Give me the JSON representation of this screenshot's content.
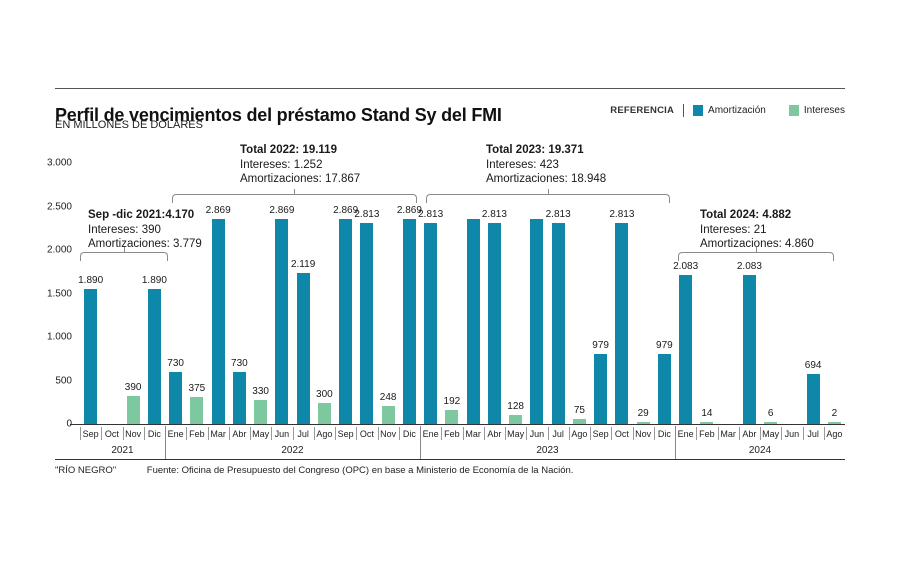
{
  "header": {
    "title": "Perfil de vencimientos del préstamo Stand Sy del FMI",
    "subtitle": "EN MILLONES DE DÓLARES"
  },
  "legend": {
    "label": "REFERENCIA",
    "items": [
      {
        "key": "amortizacion",
        "name": "Amortización",
        "color": "#0e87a8"
      },
      {
        "key": "intereses",
        "name": "Intereses",
        "color": "#7dc89e"
      }
    ]
  },
  "chart_data": {
    "type": "bar",
    "title": "Perfil de vencimientos del préstamo Stand Sy del FMI",
    "unit": "millones de dólares",
    "ylim": [
      0,
      3000
    ],
    "grid": false,
    "legend_position": "top-right",
    "yticks": [
      {
        "value": 3000,
        "label": "3.000"
      },
      {
        "value": 2500,
        "label": "2.500"
      },
      {
        "value": 2000,
        "label": "2.000"
      },
      {
        "value": 1500,
        "label": "1.500"
      },
      {
        "value": 1000,
        "label": "1.000"
      },
      {
        "value": 500,
        "label": "500"
      },
      {
        "value": 0,
        "label": "0"
      }
    ],
    "series_names": [
      "Amortización",
      "Intereses"
    ],
    "bars": [
      {
        "month": "Sep",
        "year": "2021",
        "value": 1890,
        "label": "1.890",
        "series": "amortizacion"
      },
      {
        "month": "Oct",
        "year": "2021",
        "value": 0,
        "label": "",
        "series": null
      },
      {
        "month": "Nov",
        "year": "2021",
        "value": 390,
        "label": "390",
        "series": "intereses"
      },
      {
        "month": "Dic",
        "year": "2021",
        "value": 1890,
        "label": "1.890",
        "series": "amortizacion"
      },
      {
        "month": "Ene",
        "year": "2022",
        "value": 730,
        "label": "730",
        "series": "amortizacion"
      },
      {
        "month": "Feb",
        "year": "2022",
        "value": 375,
        "label": "375",
        "series": "intereses"
      },
      {
        "month": "Mar",
        "year": "2022",
        "value": 2869,
        "label": "2.869",
        "series": "amortizacion"
      },
      {
        "month": "Abr",
        "year": "2022",
        "value": 730,
        "label": "730",
        "series": "amortizacion"
      },
      {
        "month": "May",
        "year": "2022",
        "value": 330,
        "label": "330",
        "series": "intereses"
      },
      {
        "month": "Jun",
        "year": "2022",
        "value": 2869,
        "label": "2.869",
        "series": "amortizacion"
      },
      {
        "month": "Jul",
        "year": "2022",
        "value": 2119,
        "label": "2.119",
        "series": "amortizacion"
      },
      {
        "month": "Ago",
        "year": "2022",
        "value": 300,
        "label": "300",
        "series": "intereses"
      },
      {
        "month": "Sep",
        "year": "2022",
        "value": 2869,
        "label": "2.869",
        "series": "amortizacion"
      },
      {
        "month": "Oct",
        "year": "2022",
        "value": 2813,
        "label": "2.813",
        "series": "amortizacion"
      },
      {
        "month": "Nov",
        "year": "2022",
        "value": 248,
        "label": "248",
        "series": "intereses"
      },
      {
        "month": "Dic",
        "year": "2022",
        "value": 2869,
        "label": "2.869",
        "series": "amortizacion"
      },
      {
        "month": "Ene",
        "year": "2023",
        "value": 2813,
        "label": "2.813",
        "series": "amortizacion"
      },
      {
        "month": "Feb",
        "year": "2023",
        "value": 192,
        "label": "192",
        "series": "intereses"
      },
      {
        "month": "Mar",
        "year": "2023",
        "value": 2869,
        "label": "",
        "series": "amortizacion"
      },
      {
        "month": "Abr",
        "year": "2023",
        "value": 2813,
        "label": "2.813",
        "series": "amortizacion"
      },
      {
        "month": "May",
        "year": "2023",
        "value": 128,
        "label": "128",
        "series": "intereses"
      },
      {
        "month": "Jun",
        "year": "2023",
        "value": 2869,
        "label": "",
        "series": "amortizacion"
      },
      {
        "month": "Jul",
        "year": "2023",
        "value": 2813,
        "label": "2.813",
        "series": "amortizacion"
      },
      {
        "month": "Ago",
        "year": "2023",
        "value": 75,
        "label": "75",
        "series": "intereses"
      },
      {
        "month": "Sep",
        "year": "2023",
        "value": 979,
        "label": "979",
        "series": "amortizacion"
      },
      {
        "month": "Oct",
        "year": "2023",
        "value": 2813,
        "label": "2.813",
        "series": "amortizacion"
      },
      {
        "month": "Nov",
        "year": "2023",
        "value": 29,
        "label": "29",
        "series": "intereses"
      },
      {
        "month": "Dic",
        "year": "2023",
        "value": 979,
        "label": "979",
        "series": "amortizacion"
      },
      {
        "month": "Ene",
        "year": "2024",
        "value": 2083,
        "label": "2.083",
        "series": "amortizacion"
      },
      {
        "month": "Feb",
        "year": "2024",
        "value": 14,
        "label": "14",
        "series": "intereses"
      },
      {
        "month": "Mar",
        "year": "2024",
        "value": 0,
        "label": "",
        "series": null
      },
      {
        "month": "Abr",
        "year": "2024",
        "value": 2083,
        "label": "2.083",
        "series": "amortizacion"
      },
      {
        "month": "May",
        "year": "2024",
        "value": 6,
        "label": "6",
        "series": "intereses"
      },
      {
        "month": "Jun",
        "year": "2024",
        "value": 0,
        "label": "",
        "series": null
      },
      {
        "month": "Jul",
        "year": "2024",
        "value": 694,
        "label": "694",
        "series": "amortizacion"
      },
      {
        "month": "Ago",
        "year": "2024",
        "value": 2,
        "label": "2",
        "series": "intereses"
      }
    ],
    "year_groups": [
      {
        "year": "2021",
        "start": 0,
        "count": 4
      },
      {
        "year": "2022",
        "start": 4,
        "count": 12
      },
      {
        "year": "2023",
        "start": 16,
        "count": 12
      },
      {
        "year": "2024",
        "start": 28,
        "count": 8
      }
    ],
    "annotations": {
      "y2021": {
        "line1": "Sep -dic 2021:4.170",
        "line2": "Intereses: 390",
        "line3": "Amortizaciones: 3.779"
      },
      "y2022": {
        "line1": "Total 2022: 19.119",
        "line2": "Intereses: 1.252",
        "line3": "Amortizaciones: 17.867"
      },
      "y2023": {
        "line1": "Total 2023: 19.371",
        "line2": "Intereses: 423",
        "line3": "Amortizaciones: 18.948"
      },
      "y2024": {
        "line1": "Total 2024: 4.882",
        "line2": "Intereses: 21",
        "line3": "Amortizaciones: 4.860"
      }
    }
  },
  "footer": {
    "brand": "\"RÍO NEGRO\"",
    "source": "Fuente: Oficina de Presupuesto del Congreso (OPC) en base a Ministerio de Economía de la Nación."
  }
}
